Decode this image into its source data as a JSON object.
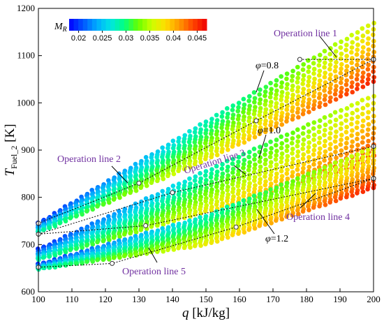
{
  "chart_data": {
    "type": "scatter",
    "xlabel": "q [kJ/kg]",
    "ylabel": "T_Fuel_2 [K]",
    "xlim": [
      100,
      200
    ],
    "ylim": [
      600,
      1200
    ],
    "xticks": [
      100,
      110,
      120,
      130,
      140,
      150,
      160,
      170,
      180,
      190,
      200
    ],
    "yticks": [
      600,
      700,
      800,
      900,
      1000,
      1100,
      1200
    ],
    "grid": false,
    "colorbar": {
      "title": "MR",
      "position": "top-left",
      "range": [
        0.018,
        0.047
      ],
      "tick_values": [
        0.02,
        0.025,
        0.03,
        0.035,
        0.04,
        0.045
      ],
      "tick_labels": [
        "0.02",
        "0.025",
        "0.03",
        "0.035",
        "0.04",
        "0.045"
      ],
      "colors": [
        "#0000ff",
        "#0055ff",
        "#00aaff",
        "#00e5e5",
        "#00ff80",
        "#66ff00",
        "#ccff00",
        "#ffdd00",
        "#ff9900",
        "#ff4400",
        "#ee0000"
      ]
    },
    "bands": [
      {
        "phi_label": "φ=0.8",
        "upper": [
          [
            100,
            745
          ],
          [
            150,
            960
          ],
          [
            200,
            1170
          ]
        ],
        "lower": [
          [
            100,
            725
          ],
          [
            150,
            880
          ],
          [
            200,
            1045
          ]
        ]
      },
      {
        "phi_label": "φ=1.0",
        "upper": [
          [
            100,
            690
          ],
          [
            150,
            855
          ],
          [
            200,
            1015
          ]
        ],
        "lower": [
          [
            100,
            668
          ],
          [
            150,
            770
          ],
          [
            200,
            878
          ]
        ]
      },
      {
        "phi_label": "φ=1.2",
        "upper": [
          [
            100,
            658
          ],
          [
            150,
            760
          ],
          [
            200,
            905
          ]
        ],
        "lower": [
          [
            100,
            648
          ],
          [
            150,
            700
          ],
          [
            200,
            820
          ]
        ]
      }
    ],
    "operation_lines": [
      {
        "label": "Operation line 1",
        "points": [
          [
            178,
            1092
          ],
          [
            200,
            1092
          ]
        ]
      },
      {
        "label": "Operation line 2",
        "points": [
          [
            100,
            745
          ],
          [
            130,
            830
          ],
          [
            165,
            962
          ],
          [
            200,
            1092
          ]
        ]
      },
      {
        "label": "Operation line 3",
        "points": [
          [
            100,
            722
          ],
          [
            140,
            810
          ],
          [
            200,
            908
          ]
        ]
      },
      {
        "label": "Operation line 4",
        "points": [
          [
            100,
            722
          ],
          [
            132,
            740
          ],
          [
            200,
            840
          ]
        ]
      },
      {
        "label": "Operation line 5",
        "points": [
          [
            100,
            652
          ],
          [
            122,
            660
          ],
          [
            159,
            737
          ],
          [
            200,
            840
          ]
        ]
      }
    ]
  },
  "labels": {
    "ylabel_main": "T",
    "ylabel_sub": "Fuel_2",
    "ylabel_unit": " [K]",
    "xlabel_main": "q",
    "xlabel_unit": " [kJ/kg]",
    "cb_title_main": "M",
    "cb_title_sub": "R",
    "phi_08": "φ=0.8",
    "phi_10": "φ=1.0",
    "phi_12": "φ=1.2",
    "op1": "Operation line 1",
    "op2": "Operation line 2",
    "op3": "Operation line 3",
    "op4": "Operation line 4",
    "op5": "Operation line 5"
  }
}
